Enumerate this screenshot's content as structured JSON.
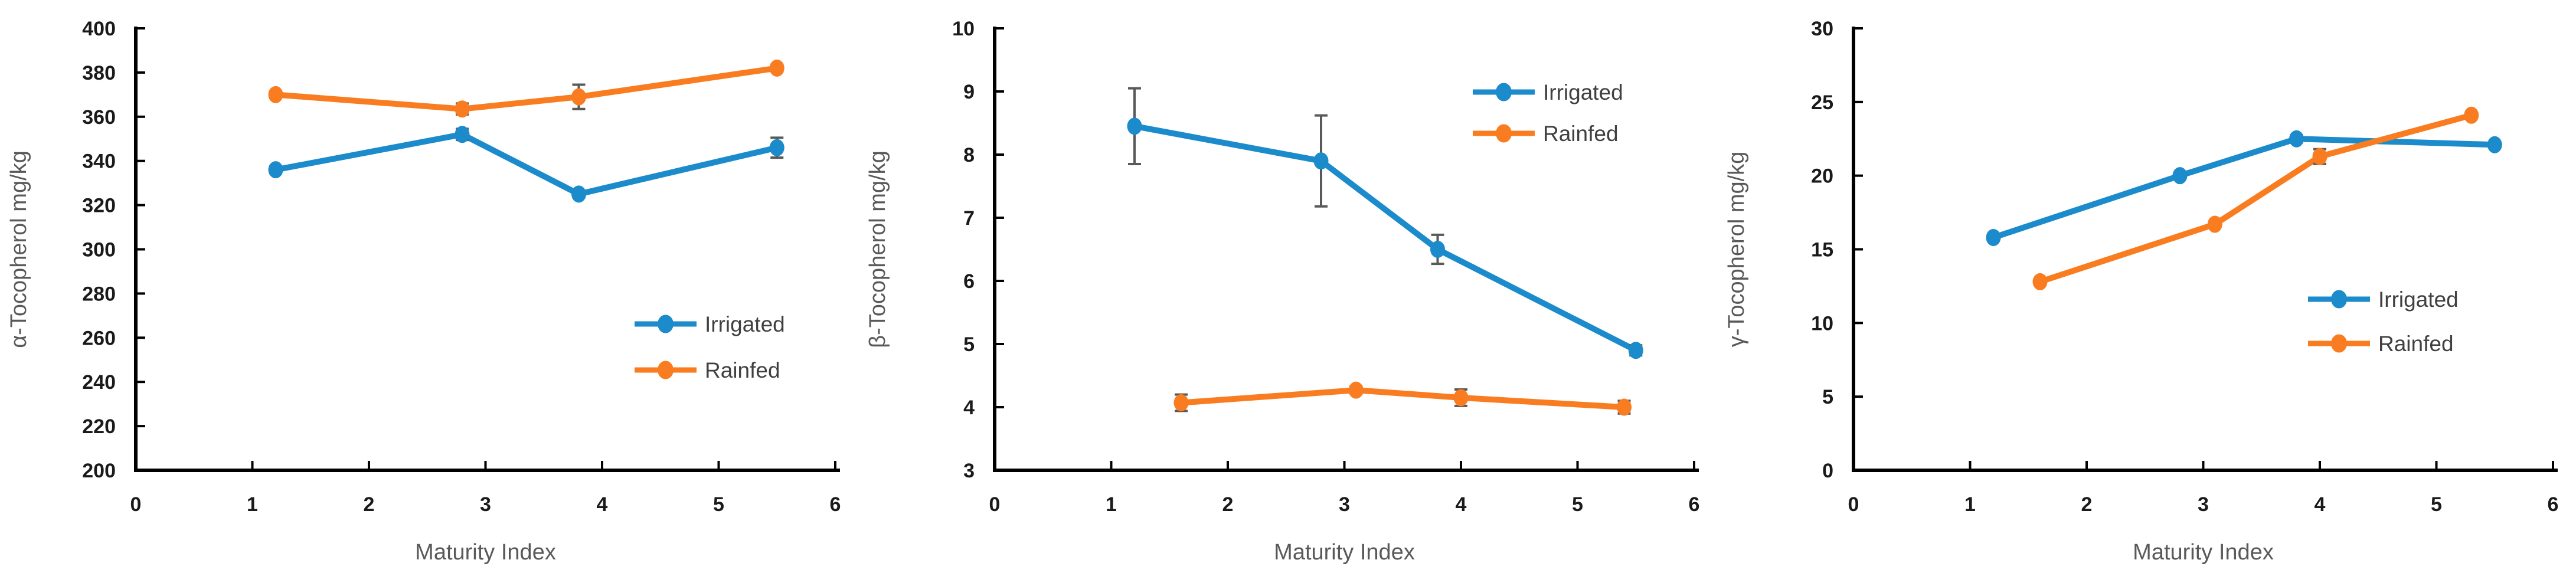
{
  "figure": {
    "description": "Three line charts of tocopherol content versus maturity index under irrigated and rainfed conditions",
    "x_axis_title": "Maturity Index"
  },
  "colors": {
    "irrigated": "#1b8bcb",
    "rainfed": "#f97d20",
    "error_bar": "#595959",
    "axis": "#000000",
    "tick_label": "#1a1a1a",
    "axis_title": "#595959",
    "legend_text": "#404040",
    "background": "#ffffff"
  },
  "chart_data": [
    {
      "type": "line",
      "id": "alpha-tocopherol",
      "title": "",
      "ylabel": "α-Tocopherol  mg/kg",
      "xlabel": "Maturity Index",
      "ylim": [
        200,
        400
      ],
      "xlim": [
        0,
        6
      ],
      "y_ticks": [
        "200",
        "220",
        "240",
        "260",
        "280",
        "300",
        "320",
        "340",
        "360",
        "380",
        "400"
      ],
      "x_ticks": [
        "0",
        "1",
        "2",
        "3",
        "4",
        "5",
        "6"
      ],
      "grid": false,
      "legend_position": "inside-middle-right",
      "legend_anchor": {
        "x": 1075,
        "rows_y": [
          549,
          627
        ]
      },
      "series": [
        {
          "name": "Irrigated",
          "color_key": "irrigated",
          "x": [
            1.2,
            2.8,
            3.8,
            5.5
          ],
          "y": [
            336,
            352,
            325,
            346
          ],
          "yerr": [
            1.5,
            2.5,
            1.5,
            4.5
          ]
        },
        {
          "name": "Rainfed",
          "color_key": "rainfed",
          "x": [
            1.2,
            2.8,
            3.8,
            5.5
          ],
          "y": [
            370,
            363.5,
            369,
            382
          ],
          "yerr": [
            1.5,
            2.5,
            5.5,
            1.5
          ]
        }
      ]
    },
    {
      "type": "line",
      "id": "beta-tocopherol",
      "title": "",
      "ylabel": "β-Tocopherol  mg/kg",
      "xlabel": "Maturity Index",
      "ylim": [
        3,
        10
      ],
      "xlim": [
        0,
        6
      ],
      "y_ticks": [
        "3",
        "4",
        "5",
        "6",
        "7",
        "8",
        "9",
        "10"
      ],
      "x_ticks": [
        "0",
        "1",
        "2",
        "3",
        "4",
        "5",
        "6"
      ],
      "grid": false,
      "legend_position": "inside-top-right",
      "legend_anchor": {
        "x": 1040,
        "rows_y": [
          156,
          226
        ]
      },
      "series": [
        {
          "name": "Irrigated",
          "color_key": "irrigated",
          "x": [
            1.2,
            2.8,
            3.8,
            5.5
          ],
          "y": [
            8.45,
            7.9,
            6.5,
            4.9
          ],
          "yerr": [
            0.6,
            0.72,
            0.23,
            0.08
          ]
        },
        {
          "name": "Rainfed",
          "color_key": "rainfed",
          "x": [
            1.6,
            3.1,
            4.0,
            5.4
          ],
          "y": [
            4.07,
            4.27,
            4.15,
            4.0
          ],
          "yerr": [
            0.13,
            0.06,
            0.13,
            0.1
          ]
        }
      ]
    },
    {
      "type": "line",
      "id": "gamma-tocopherol",
      "title": "",
      "ylabel": "γ-Tocopherol mg/kg",
      "xlabel": "Maturity Index",
      "ylim": [
        0,
        30
      ],
      "xlim": [
        0,
        6
      ],
      "y_ticks": [
        "0",
        "5",
        "10",
        "15",
        "20",
        "25",
        "30"
      ],
      "x_ticks": [
        "0",
        "1",
        "2",
        "3",
        "4",
        "5",
        "6"
      ],
      "grid": false,
      "legend_position": "inside-middle-right",
      "legend_anchor": {
        "x": 1000,
        "rows_y": [
          507,
          582
        ]
      },
      "series": [
        {
          "name": "Irrigated",
          "color_key": "irrigated",
          "x": [
            1.2,
            2.8,
            3.8,
            5.5
          ],
          "y": [
            15.8,
            20.0,
            22.5,
            22.1
          ],
          "yerr": [
            0.15,
            0.15,
            0.25,
            0.15
          ]
        },
        {
          "name": "Rainfed",
          "color_key": "rainfed",
          "x": [
            1.6,
            3.1,
            4.0,
            5.3
          ],
          "y": [
            12.8,
            16.7,
            21.3,
            24.1
          ],
          "yerr": [
            0.15,
            0.15,
            0.5,
            0.15
          ]
        }
      ]
    }
  ]
}
